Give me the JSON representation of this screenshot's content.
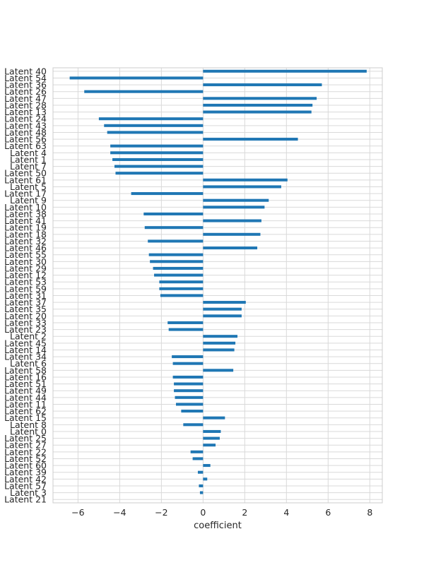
{
  "chart_data": {
    "type": "bar",
    "orientation": "horizontal",
    "title": "",
    "xlabel": "coefficient",
    "ylabel": "",
    "xlim": [
      -7.2,
      8.6
    ],
    "xticks": [
      -6,
      -4,
      -2,
      0,
      2,
      4,
      6,
      8
    ],
    "xtick_labels": [
      "−6",
      "−4",
      "−2",
      "0",
      "2",
      "4",
      "6",
      "8"
    ],
    "grid": true,
    "legend": "none",
    "bar_color": "#1f77b4",
    "categories": [
      "Latent 40",
      "Latent 54",
      "Latent 36",
      "Latent 26",
      "Latent 47",
      "Latent 28",
      "Latent 13",
      "Latent 24",
      "Latent 43",
      "Latent 48",
      "Latent 56",
      "Latent 63",
      "Latent 4",
      "Latent 1",
      "Latent 7",
      "Latent 50",
      "Latent 61",
      "Latent 5",
      "Latent 17",
      "Latent 9",
      "Latent 10",
      "Latent 38",
      "Latent 41",
      "Latent 19",
      "Latent 18",
      "Latent 32",
      "Latent 46",
      "Latent 55",
      "Latent 30",
      "Latent 29",
      "Latent 12",
      "Latent 53",
      "Latent 59",
      "Latent 31",
      "Latent 37",
      "Latent 35",
      "Latent 20",
      "Latent 33",
      "Latent 23",
      "Latent 2",
      "Latent 45",
      "Latent 14",
      "Latent 34",
      "Latent 6",
      "Latent 58",
      "Latent 16",
      "Latent 51",
      "Latent 49",
      "Latent 44",
      "Latent 11",
      "Latent 62",
      "Latent 15",
      "Latent 8",
      "Latent 0",
      "Latent 25",
      "Latent 27",
      "Latent 22",
      "Latent 52",
      "Latent 60",
      "Latent 39",
      "Latent 42",
      "Latent 57",
      "Latent 3",
      "Latent 21"
    ],
    "values": [
      7.85,
      -6.4,
      5.7,
      -5.7,
      5.45,
      5.25,
      5.2,
      -5.0,
      -4.75,
      -4.6,
      4.55,
      -4.45,
      -4.45,
      -4.35,
      -4.25,
      -4.2,
      4.05,
      3.75,
      -3.45,
      3.15,
      2.95,
      -2.85,
      2.8,
      -2.8,
      2.75,
      -2.65,
      2.6,
      -2.6,
      -2.55,
      -2.4,
      -2.35,
      -2.1,
      -2.1,
      -2.05,
      2.05,
      1.85,
      1.85,
      -1.7,
      -1.65,
      1.65,
      1.55,
      1.5,
      -1.5,
      -1.45,
      1.45,
      -1.45,
      -1.4,
      -1.4,
      -1.35,
      -1.3,
      -1.05,
      1.05,
      -0.95,
      0.85,
      0.8,
      0.6,
      -0.6,
      -0.5,
      0.35,
      -0.25,
      0.2,
      -0.2,
      -0.15,
      0.0
    ]
  }
}
